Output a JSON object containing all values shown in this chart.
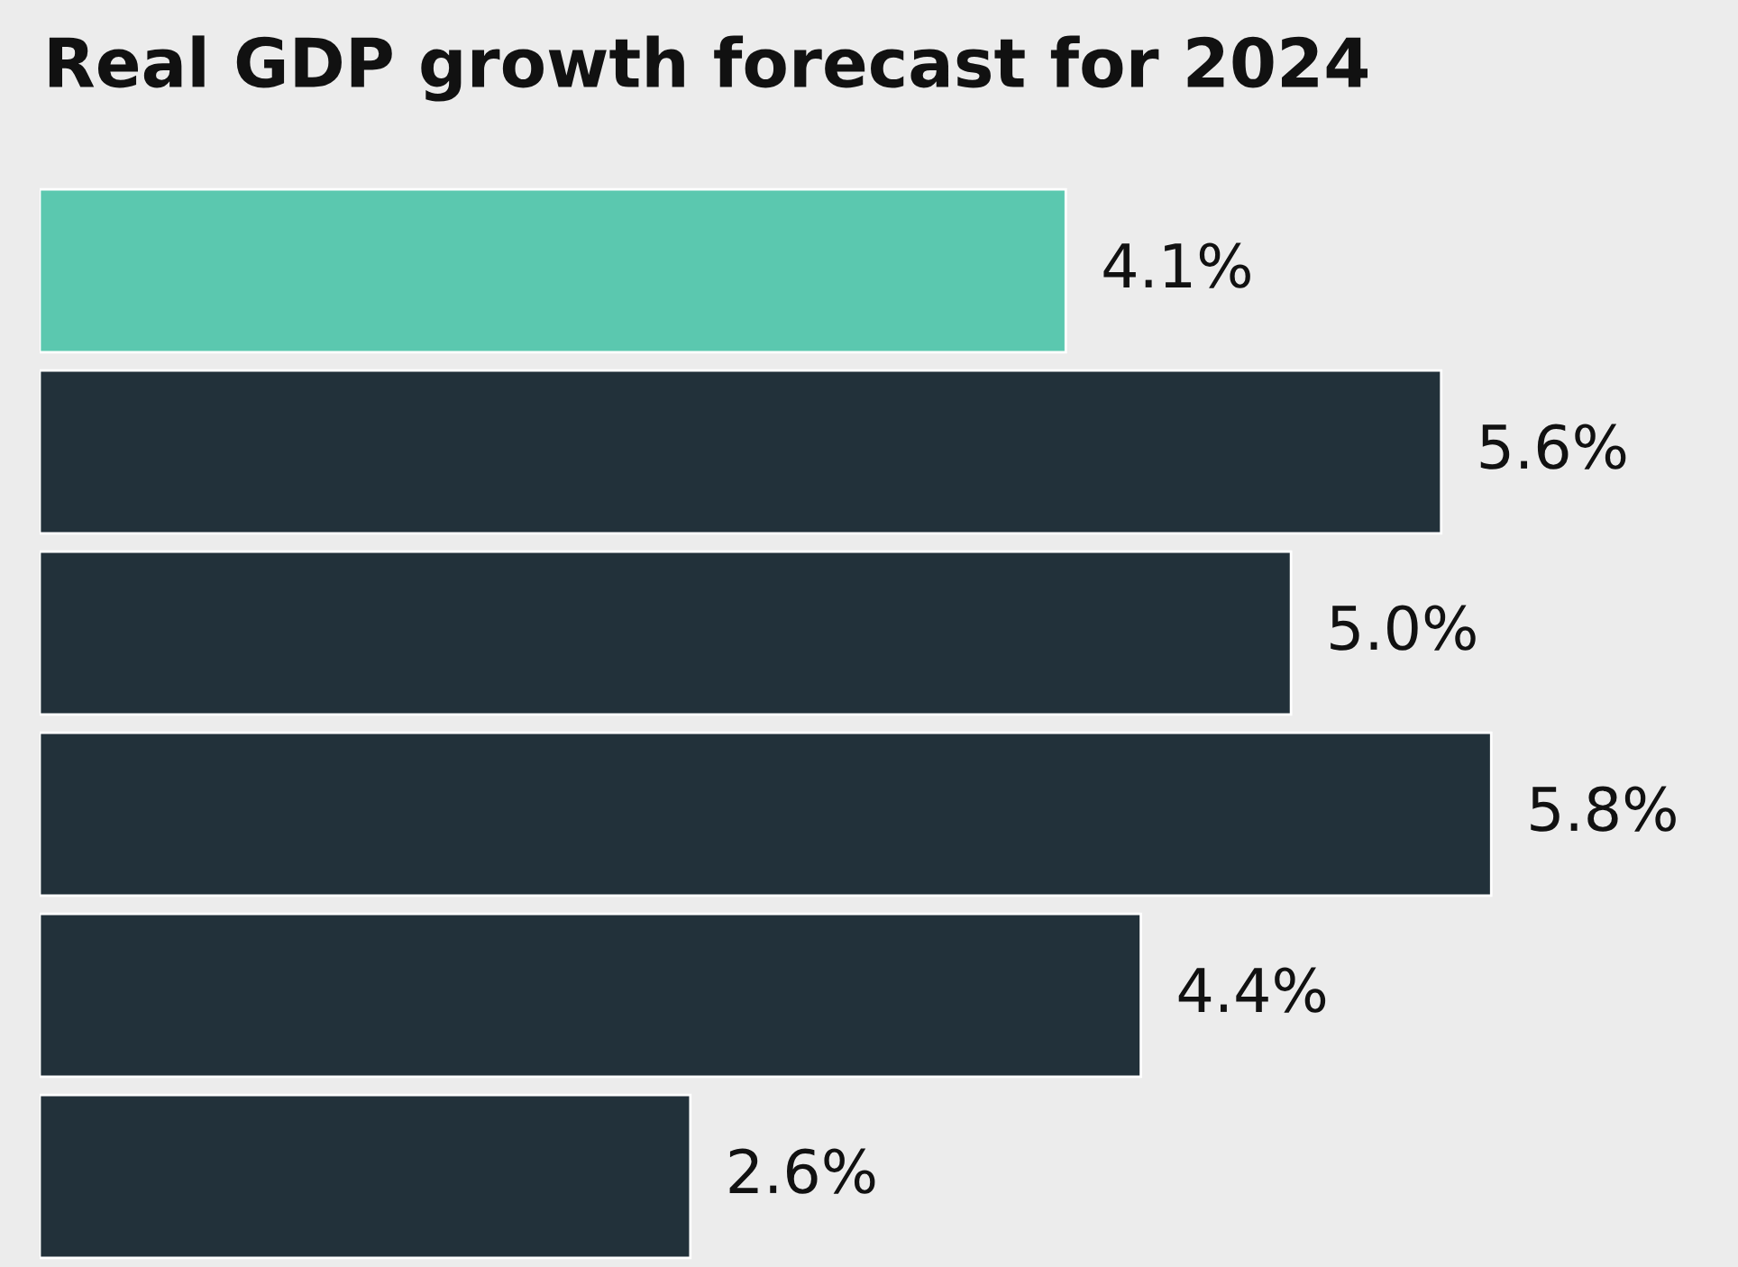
{
  "chart_data": {
    "type": "bar",
    "orientation": "horizontal",
    "title": "Real GDP growth forecast for 2024",
    "categories": [
      null,
      null,
      null,
      null,
      null,
      null
    ],
    "values": [
      4.1,
      5.6,
      5.0,
      5.8,
      4.4,
      2.6
    ],
    "value_labels": [
      "4.1%",
      "5.6%",
      "5.0%",
      "5.8%",
      "4.4%",
      "2.6%"
    ],
    "colors": [
      "#5bc8af",
      "#22313a",
      "#22313a",
      "#22313a",
      "#22313a",
      "#22313a"
    ],
    "grid": false,
    "legend": false
  }
}
